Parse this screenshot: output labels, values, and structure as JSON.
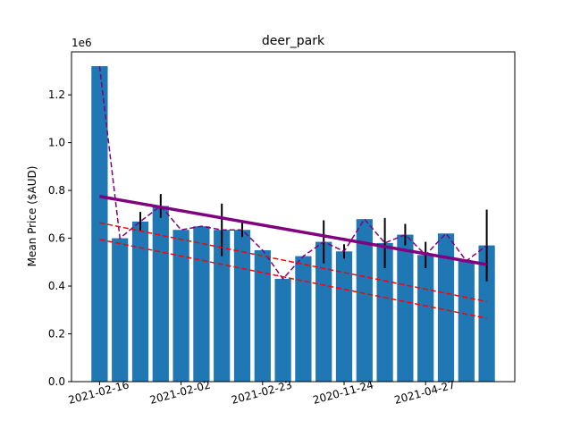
{
  "chart_data": {
    "type": "bar",
    "title": "deer_park",
    "xlabel": "",
    "ylabel": "Mean Price ($AUD)",
    "y_multiplier_label": "1e6",
    "ylim": [
      0,
      1.38
    ],
    "yticks": [
      {
        "value": 0.0,
        "label": "0.0"
      },
      {
        "value": 0.2,
        "label": "0.2"
      },
      {
        "value": 0.4,
        "label": "0.4"
      },
      {
        "value": 0.6,
        "label": "0.6"
      },
      {
        "value": 0.8,
        "label": "0.8"
      },
      {
        "value": 1.0,
        "label": "1.0"
      },
      {
        "value": 1.2,
        "label": "1.2"
      }
    ],
    "xticks": [
      {
        "index": 0,
        "label": "2021-02-16"
      },
      {
        "index": 4,
        "label": "2021-02-02"
      },
      {
        "index": 8,
        "label": "2021-02-23"
      },
      {
        "index": 12,
        "label": "2020-11-24"
      },
      {
        "index": 16,
        "label": "2021-04-27"
      }
    ],
    "bar_color": "#1f77b4",
    "values": [
      1.32,
      0.6,
      0.67,
      0.735,
      0.635,
      0.65,
      0.635,
      0.635,
      0.55,
      0.43,
      0.525,
      0.585,
      0.545,
      0.68,
      0.58,
      0.615,
      0.53,
      0.62,
      0.505,
      0.57
    ],
    "error_bars": [
      null,
      null,
      0.04,
      0.05,
      null,
      null,
      0.11,
      0.03,
      null,
      null,
      null,
      0.09,
      0.03,
      null,
      0.105,
      0.045,
      0.055,
      null,
      null,
      0.15
    ],
    "overlay_lines": [
      {
        "kind": "dashed",
        "color": "#800080",
        "values": [
          1.32,
          0.6,
          0.67,
          0.735,
          0.635,
          0.65,
          0.635,
          0.635,
          0.55,
          0.43,
          0.525,
          0.585,
          0.545,
          0.68,
          0.58,
          0.615,
          0.53,
          0.62,
          0.505,
          0.57
        ]
      },
      {
        "kind": "trend",
        "color": "#800080",
        "start": 0.775,
        "end": 0.49
      },
      {
        "kind": "dashed-trend",
        "color": "#ff0000",
        "start": 0.665,
        "end": 0.335
      },
      {
        "kind": "dashed-trend",
        "color": "#ff0000",
        "start": 0.595,
        "end": 0.265
      }
    ]
  }
}
